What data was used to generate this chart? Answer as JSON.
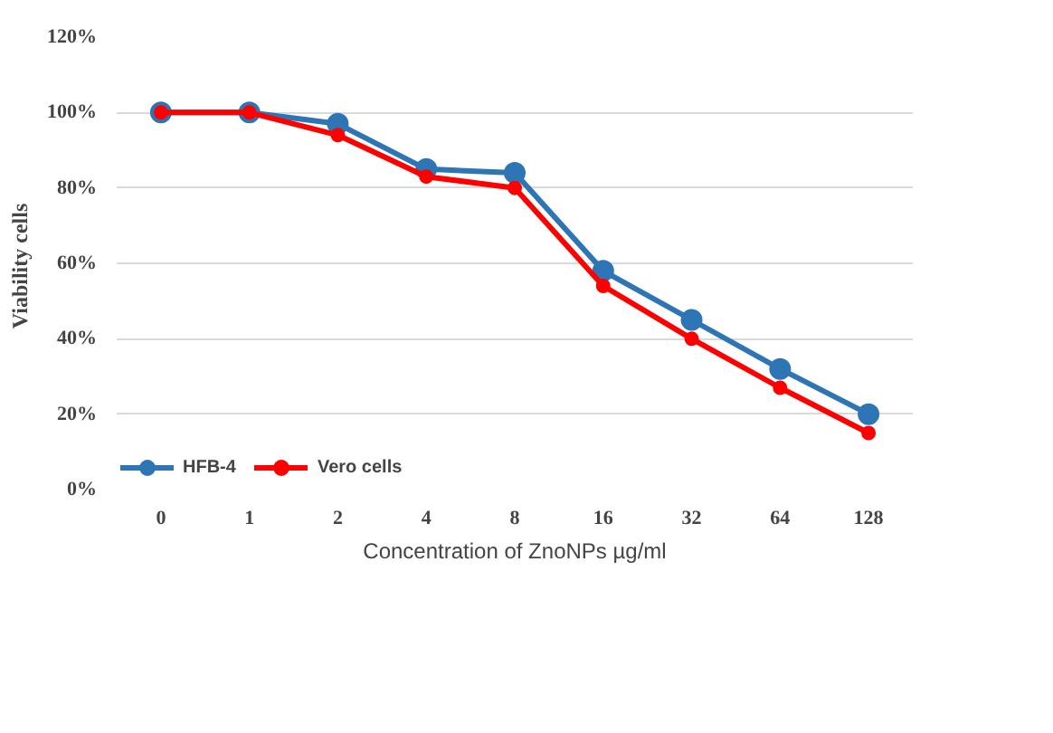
{
  "chart_data": {
    "type": "line",
    "xlabel": "Concentration of ZnoNPs µg/ml",
    "ylabel": "Viability  cells",
    "categories": [
      "0",
      "1",
      "2",
      "4",
      "8",
      "16",
      "32",
      "64",
      "128"
    ],
    "series": [
      {
        "name": "HFB-4",
        "color": "#2e75b6",
        "values": [
          100,
          100,
          97,
          85,
          84,
          58,
          45,
          32,
          20
        ]
      },
      {
        "name": "Vero cells",
        "color": "#ff0000",
        "values": [
          100,
          100,
          94,
          83,
          80,
          54,
          40,
          27,
          15
        ]
      }
    ],
    "ylim": [
      0,
      120
    ],
    "yticks": [
      {
        "value": 0,
        "label": "0%"
      },
      {
        "value": 20,
        "label": "20%"
      },
      {
        "value": 40,
        "label": "40%"
      },
      {
        "value": 60,
        "label": "60%"
      },
      {
        "value": 80,
        "label": "80%"
      },
      {
        "value": 100,
        "label": "100%"
      },
      {
        "value": 120,
        "label": "120%"
      }
    ],
    "grid": "y",
    "legend": "bottom left",
    "marker": "circle",
    "line_style": "solid"
  }
}
